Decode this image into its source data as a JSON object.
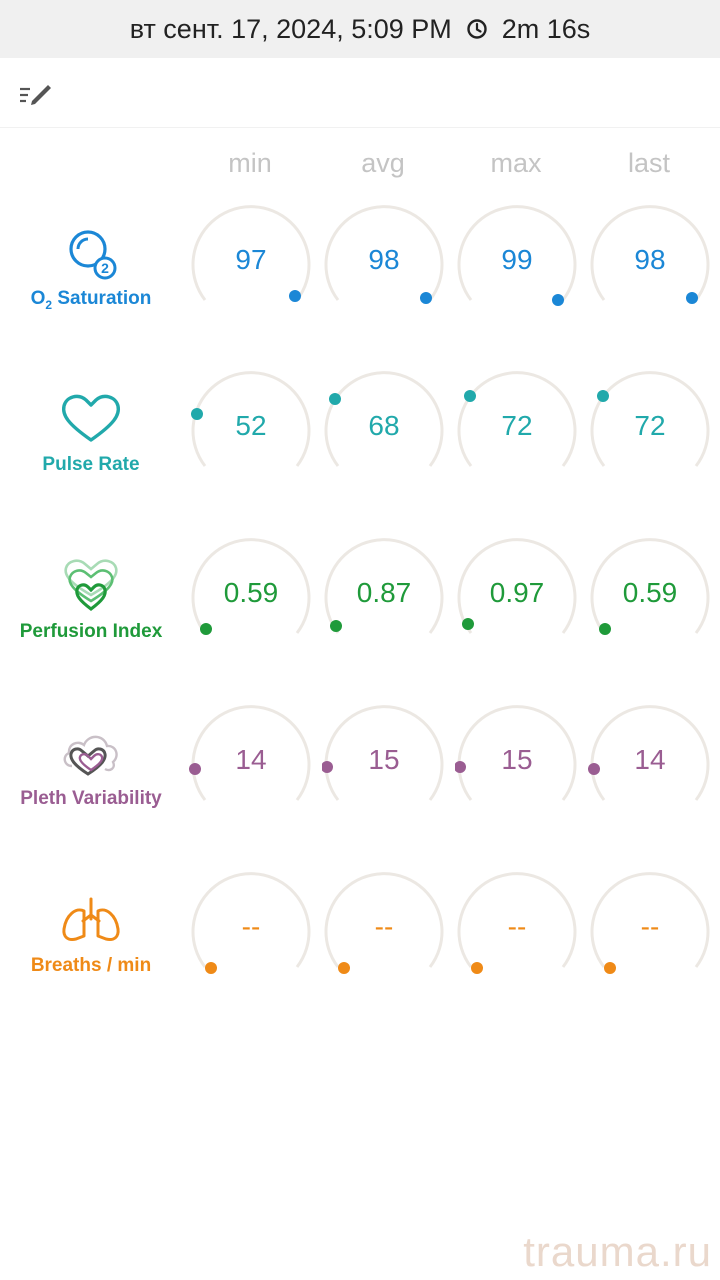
{
  "header": {
    "datetime": "вт сент. 17, 2024, 5:09 PM",
    "duration": "2m 16s",
    "clock_icon": "clock-icon"
  },
  "toolbar": {
    "edit_icon": "edit-list-icon"
  },
  "columns": [
    "min",
    "avg",
    "max",
    "last"
  ],
  "colors": {
    "spo2": "#1b87d6",
    "pulse": "#21a9ab",
    "pi": "#1f9a3a",
    "pvi": "#9a5d92",
    "resp": "#ef8a17",
    "track": "#ece8e3",
    "header_bg": "#f0f0f0",
    "watermark": "#ead8cc"
  },
  "metrics": [
    {
      "key": "spo2",
      "label_main": "O",
      "label_sub": "2",
      "label_rest": " Saturation",
      "icon": "o2-bubble-icon",
      "values": [
        "97",
        "98",
        "99",
        "98"
      ]
    },
    {
      "key": "pulse",
      "label": "Pulse Rate",
      "icon": "heart-icon",
      "values": [
        "52",
        "68",
        "72",
        "72"
      ]
    },
    {
      "key": "pi",
      "label": "Perfusion Index",
      "icon": "layered-hearts-icon",
      "values": [
        "0.59",
        "0.87",
        "0.97",
        "0.59"
      ]
    },
    {
      "key": "pvi",
      "label": "Pleth Variability",
      "icon": "heart-cloud-icon",
      "values": [
        "14",
        "15",
        "15",
        "14"
      ]
    },
    {
      "key": "resp",
      "label": "Breaths / min",
      "icon": "lungs-icon",
      "values": [
        "--",
        "--",
        "--",
        "--"
      ]
    }
  ],
  "watermark": "trauma.ru"
}
